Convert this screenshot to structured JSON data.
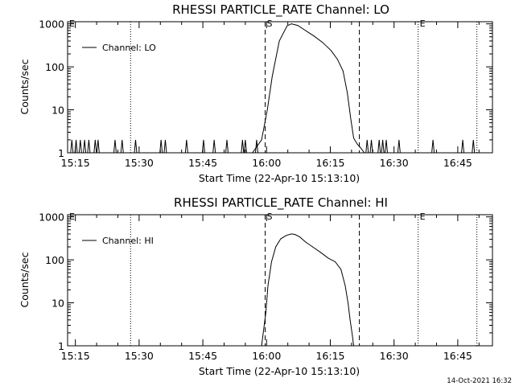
{
  "chart_data": [
    {
      "type": "line",
      "title": "RHESSI PARTICLE_RATE Channel: LO",
      "xlabel": "Start Time (22-Apr-10 15:13:10)",
      "ylabel": "Counts/sec",
      "yscale": "log",
      "ylim": [
        1,
        1000
      ],
      "xlim": [
        "15:13:10",
        "16:53:10"
      ],
      "x_ticks": [
        "15:15",
        "15:30",
        "15:45",
        "16:00",
        "16:15",
        "16:30",
        "16:45"
      ],
      "y_ticks": [
        "1",
        "10",
        "100",
        "1000"
      ],
      "legend": {
        "entries": [
          "Channel: LO"
        ],
        "position": "top-left"
      },
      "grid": false,
      "markers": [
        {
          "label": "S",
          "time": "15:59:40",
          "style": "dashed"
        },
        {
          "label": "",
          "time": "16:21:50",
          "style": "dashed"
        },
        {
          "label": "E",
          "time": "16:35:40",
          "style": "dotted"
        },
        {
          "label": "",
          "time": "15:28:00",
          "style": "dotted"
        },
        {
          "label": "",
          "time": "16:49:30",
          "style": "dotted"
        }
      ],
      "series": [
        {
          "name": "Channel: LO",
          "x": [
            "15:56:40",
            "15:58:50",
            "16:00:10",
            "16:01:20",
            "16:03:00",
            "16:04:50",
            "16:05:50",
            "16:07:20",
            "16:09:10",
            "16:11:10",
            "16:13:10",
            "16:15:10",
            "16:16:40",
            "16:18:00",
            "16:19:00",
            "16:19:50",
            "16:20:30",
            "16:21:20",
            "16:22:10",
            "16:23:00"
          ],
          "y": [
            1,
            2,
            10,
            60,
            400,
            900,
            1000,
            920,
            700,
            520,
            370,
            240,
            150,
            80,
            25,
            6,
            2.2,
            1.6,
            1.3,
            1
          ]
        }
      ],
      "noise_times": [
        "15:14:10",
        "15:15:10",
        "15:16:10",
        "15:17:10",
        "15:18:10",
        "15:19:40",
        "15:20:20",
        "15:24:20",
        "15:26:00",
        "15:29:10",
        "15:35:10",
        "15:36:10",
        "15:41:10",
        "15:45:10",
        "15:47:40",
        "15:50:40",
        "15:54:20",
        "15:55:00",
        "15:57:40",
        "16:23:40",
        "16:24:40",
        "16:26:30",
        "16:27:20",
        "16:28:10",
        "16:31:10",
        "16:39:10",
        "16:46:10",
        "16:48:40"
      ]
    },
    {
      "type": "line",
      "title": "RHESSI PARTICLE_RATE Channel: HI",
      "xlabel": "Start Time (22-Apr-10 15:13:10)",
      "ylabel": "Counts/sec",
      "yscale": "log",
      "ylim": [
        1,
        1000
      ],
      "xlim": [
        "15:13:10",
        "16:53:10"
      ],
      "x_ticks": [
        "15:15",
        "15:30",
        "15:45",
        "16:00",
        "16:15",
        "16:30",
        "16:45"
      ],
      "y_ticks": [
        "1",
        "10",
        "100",
        "1000"
      ],
      "legend": {
        "entries": [
          "Channel: HI"
        ],
        "position": "top-left"
      },
      "grid": false,
      "markers": [
        {
          "label": "S",
          "time": "15:59:40",
          "style": "dashed"
        },
        {
          "label": "",
          "time": "16:21:50",
          "style": "dashed"
        },
        {
          "label": "E",
          "time": "16:35:40",
          "style": "dotted"
        },
        {
          "label": "",
          "time": "15:28:00",
          "style": "dotted"
        },
        {
          "label": "",
          "time": "16:49:30",
          "style": "dotted"
        }
      ],
      "series": [
        {
          "name": "Channel: HI",
          "x": [
            "15:58:50",
            "15:59:50",
            "16:00:20",
            "16:01:10",
            "16:02:10",
            "16:03:20",
            "16:04:40",
            "16:05:50",
            "16:06:40",
            "16:07:50",
            "16:09:10",
            "16:10:50",
            "16:12:40",
            "16:14:30",
            "16:16:10",
            "16:17:30",
            "16:18:30",
            "16:19:10",
            "16:19:40",
            "16:20:10",
            "16:20:30"
          ],
          "y": [
            1,
            6,
            25,
            90,
            200,
            310,
            370,
            400,
            390,
            340,
            260,
            200,
            150,
            110,
            90,
            60,
            25,
            10,
            4,
            1.8,
            1
          ]
        }
      ],
      "noise_times": []
    }
  ],
  "footer": {
    "timestamp": "14-Oct-2021 16:32"
  }
}
